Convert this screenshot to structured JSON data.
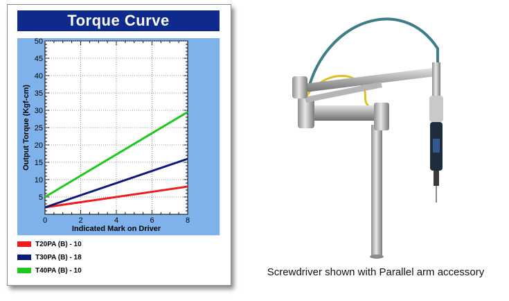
{
  "chart_data": {
    "type": "line",
    "title": "Torque Curve",
    "xlabel": "Indicated Mark on Driver",
    "ylabel": "Output Torque (Kgf-cm)",
    "xlim": [
      0,
      8
    ],
    "ylim": [
      0,
      50
    ],
    "x_ticks": [
      0,
      2,
      4,
      6,
      8
    ],
    "y_ticks": [
      5,
      10,
      15,
      20,
      25,
      30,
      35,
      40,
      45,
      50
    ],
    "grid": true,
    "legend_position": "bottom",
    "series": [
      {
        "name": "T20PA (B) - 10",
        "color": "#ee1c1c",
        "x": [
          0,
          8
        ],
        "y": [
          2,
          8
        ]
      },
      {
        "name": "T30PA (B) - 18",
        "color": "#0a1a7a",
        "x": [
          0,
          8
        ],
        "y": [
          2,
          16
        ]
      },
      {
        "name": "T40PA (B) - 10",
        "color": "#1ec81e",
        "x": [
          0,
          8
        ],
        "y": [
          5,
          29.5
        ]
      }
    ]
  },
  "colors": {
    "title_bar": "#0d2a8c",
    "frame": "#7fb2ea",
    "plot_bg": "#ffffff"
  },
  "caption": "Screwdriver shown with Parallel arm accessory"
}
